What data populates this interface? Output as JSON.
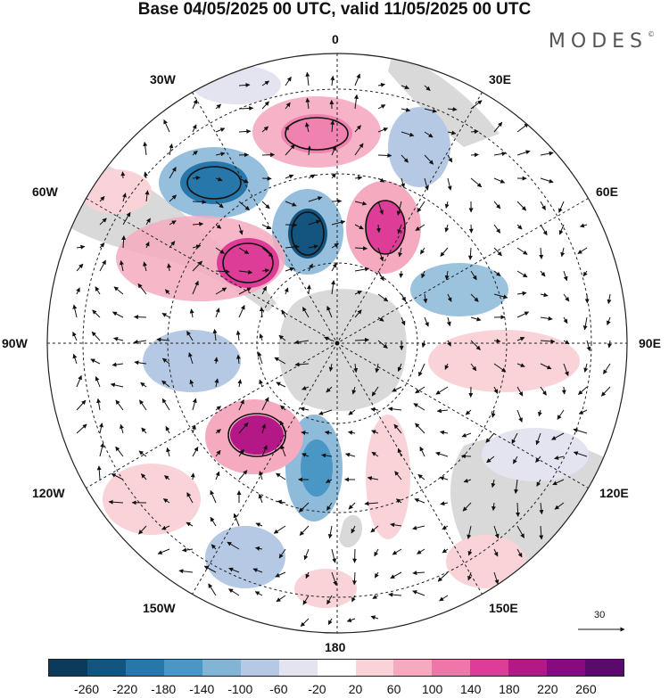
{
  "title": "Base 04/05/2025 00 UTC, valid 11/05/2025 00 UTC",
  "brand": "MODES",
  "brand_mark": "©",
  "projection": "south-polar-stereographic",
  "longitude_labels": [
    "0",
    "30E",
    "60E",
    "90E",
    "120E",
    "150E",
    "180",
    "150W",
    "120W",
    "90W",
    "60W",
    "30W"
  ],
  "reference_vector_value": "30",
  "colorbar": {
    "ticks": [
      "-260",
      "-220",
      "-180",
      "-140",
      "-100",
      "-60",
      "-20",
      "20",
      "60",
      "100",
      "140",
      "180",
      "220",
      "260"
    ],
    "colors": [
      "#0b3a5a",
      "#14557f",
      "#2877aa",
      "#4a96c4",
      "#82b4d6",
      "#b6c9e4",
      "#e4e4f1",
      "#ffffff",
      "#fad3d9",
      "#f5aac0",
      "#ee76a8",
      "#dd3d96",
      "#b41887",
      "#870b7e",
      "#5a0a6b"
    ]
  },
  "colors": {
    "land": "#d9d9d9",
    "ocean": "#ffffff",
    "grid": "#222222",
    "contour": "#111111"
  }
}
